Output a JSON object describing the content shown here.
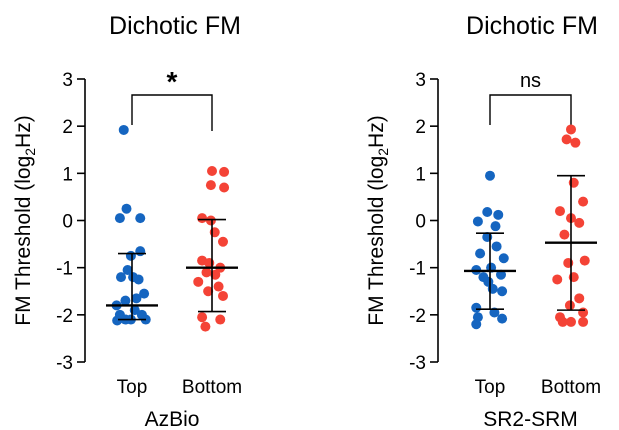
{
  "chart_data": [
    {
      "type": "scatter",
      "title": "Dichotic FM",
      "ylabel": "FM Threshold (log2Hz)",
      "xlabel": "AzBio",
      "ylim": [
        -3,
        3
      ],
      "yticks": [
        -3,
        -2,
        -1,
        0,
        1,
        2,
        3
      ],
      "categories": [
        "Top",
        "Bottom"
      ],
      "colors": [
        "#1565c0",
        "#f44336"
      ],
      "significance": "*",
      "series": [
        {
          "name": "Top",
          "mean": -1.8,
          "sd_upper": -0.7,
          "sd_lower": -2.1,
          "points": [
            {
              "x": -0.15,
              "y": 1.92
            },
            {
              "x": -0.1,
              "y": 0.25
            },
            {
              "x": -0.22,
              "y": 0.05
            },
            {
              "x": 0.15,
              "y": 0.05
            },
            {
              "x": 0.15,
              "y": -0.65
            },
            {
              "x": -0.02,
              "y": -0.75
            },
            {
              "x": -0.08,
              "y": -1.05
            },
            {
              "x": 0.02,
              "y": -1.2
            },
            {
              "x": -0.2,
              "y": -1.2
            },
            {
              "x": 0.12,
              "y": -1.25
            },
            {
              "x": -0.12,
              "y": -1.7
            },
            {
              "x": 0.22,
              "y": -1.55
            },
            {
              "x": 0.08,
              "y": -1.65
            },
            {
              "x": -0.28,
              "y": -1.8
            },
            {
              "x": -0.22,
              "y": -2.0
            },
            {
              "x": 0.05,
              "y": -1.9
            },
            {
              "x": 0.18,
              "y": -2.0
            },
            {
              "x": -0.02,
              "y": -2.1
            },
            {
              "x": -0.12,
              "y": -2.1
            },
            {
              "x": 0.25,
              "y": -2.1
            },
            {
              "x": -0.27,
              "y": -2.12
            }
          ]
        },
        {
          "name": "Bottom",
          "mean": -1.0,
          "sd_upper": 0.02,
          "sd_lower": -1.93,
          "points": [
            {
              "x": 0.0,
              "y": 1.05
            },
            {
              "x": 0.22,
              "y": 1.03
            },
            {
              "x": -0.02,
              "y": 0.75
            },
            {
              "x": 0.22,
              "y": 0.7
            },
            {
              "x": -0.18,
              "y": 0.05
            },
            {
              "x": -0.02,
              "y": 0.0
            },
            {
              "x": 0.05,
              "y": -0.25
            },
            {
              "x": 0.2,
              "y": -0.45
            },
            {
              "x": -0.18,
              "y": -0.85
            },
            {
              "x": -0.05,
              "y": -0.9
            },
            {
              "x": 0.15,
              "y": -1.0
            },
            {
              "x": -0.1,
              "y": -1.1
            },
            {
              "x": 0.06,
              "y": -1.15
            },
            {
              "x": -0.25,
              "y": -1.3
            },
            {
              "x": 0.12,
              "y": -1.4
            },
            {
              "x": -0.07,
              "y": -1.5
            },
            {
              "x": 0.2,
              "y": -1.6
            },
            {
              "x": -0.18,
              "y": -2.05
            },
            {
              "x": 0.15,
              "y": -2.1
            },
            {
              "x": -0.12,
              "y": -2.25
            }
          ]
        }
      ]
    },
    {
      "type": "scatter",
      "title": "Dichotic FM",
      "ylabel": "FM Threshold (log2Hz)",
      "xlabel": "SR2-SRM",
      "ylim": [
        -3,
        3
      ],
      "yticks": [
        -3,
        -2,
        -1,
        0,
        1,
        2,
        3
      ],
      "categories": [
        "Top",
        "Bottom"
      ],
      "colors": [
        "#1565c0",
        "#f44336"
      ],
      "significance": "ns",
      "series": [
        {
          "name": "Top",
          "mean": -1.07,
          "sd_upper": -0.27,
          "sd_lower": -1.88,
          "points": [
            {
              "x": 0.0,
              "y": 0.95
            },
            {
              "x": 0.15,
              "y": 0.12
            },
            {
              "x": -0.05,
              "y": 0.18
            },
            {
              "x": -0.22,
              "y": -0.02
            },
            {
              "x": 0.1,
              "y": -0.12
            },
            {
              "x": -0.05,
              "y": -0.35
            },
            {
              "x": 0.12,
              "y": -0.55
            },
            {
              "x": -0.18,
              "y": -0.7
            },
            {
              "x": 0.25,
              "y": -0.8
            },
            {
              "x": -0.25,
              "y": -1.05
            },
            {
              "x": 0.02,
              "y": -1.0
            },
            {
              "x": 0.2,
              "y": -1.15
            },
            {
              "x": -0.12,
              "y": -1.2
            },
            {
              "x": -0.03,
              "y": -1.3
            },
            {
              "x": 0.05,
              "y": -1.45
            },
            {
              "x": 0.22,
              "y": -1.5
            },
            {
              "x": -0.25,
              "y": -1.85
            },
            {
              "x": 0.08,
              "y": -1.95
            },
            {
              "x": -0.22,
              "y": -2.05
            },
            {
              "x": 0.22,
              "y": -2.08
            },
            {
              "x": -0.25,
              "y": -2.2
            }
          ]
        },
        {
          "name": "Bottom",
          "mean": -0.47,
          "sd_upper": 0.95,
          "sd_lower": -1.9,
          "points": [
            {
              "x": 0.0,
              "y": 1.93
            },
            {
              "x": -0.08,
              "y": 1.72
            },
            {
              "x": 0.08,
              "y": 1.65
            },
            {
              "x": 0.05,
              "y": 0.8
            },
            {
              "x": 0.22,
              "y": 0.4
            },
            {
              "x": -0.2,
              "y": 0.2
            },
            {
              "x": 0.0,
              "y": 0.05
            },
            {
              "x": 0.15,
              "y": -0.05
            },
            {
              "x": -0.12,
              "y": -0.3
            },
            {
              "x": 0.25,
              "y": -0.85
            },
            {
              "x": -0.05,
              "y": -0.9
            },
            {
              "x": 0.05,
              "y": -1.2
            },
            {
              "x": -0.25,
              "y": -1.25
            },
            {
              "x": 0.15,
              "y": -1.65
            },
            {
              "x": -0.02,
              "y": -1.8
            },
            {
              "x": 0.22,
              "y": -1.95
            },
            {
              "x": -0.2,
              "y": -2.05
            },
            {
              "x": 0.0,
              "y": -2.15
            },
            {
              "x": -0.15,
              "y": -2.15
            },
            {
              "x": 0.22,
              "y": -2.15
            }
          ]
        }
      ]
    }
  ]
}
